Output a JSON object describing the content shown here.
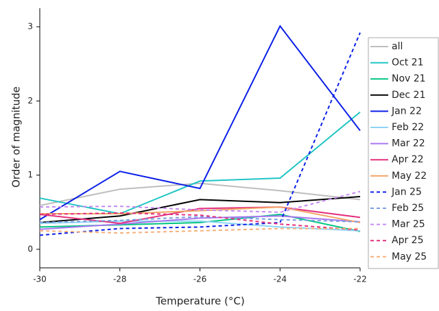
{
  "chart_data": {
    "type": "line",
    "x_label": "Temperature (°C)",
    "y_label": "Order of magnitude",
    "x": [
      -30,
      -28,
      -26,
      -24,
      -22
    ],
    "xlim": [
      -30,
      -22
    ],
    "xticks": [
      -30,
      -28,
      -26,
      -24,
      -22
    ],
    "ylim": [
      -0.25,
      3.25
    ],
    "yticks": [
      0,
      1,
      2,
      3
    ],
    "grid": false,
    "legend": "right",
    "series": [
      {
        "name": "all",
        "color": "#bdbdbd",
        "dash": false,
        "values": [
          0.59,
          0.81,
          0.89,
          0.79,
          0.67
        ]
      },
      {
        "name": "Oct 21",
        "color": "#1fc4c4",
        "dash": false,
        "values": [
          0.69,
          0.48,
          0.92,
          0.96,
          1.85
        ]
      },
      {
        "name": "Nov 21",
        "color": "#00c483",
        "dash": false,
        "values": [
          0.3,
          0.33,
          0.36,
          0.47,
          0.24
        ]
      },
      {
        "name": "Dec 21",
        "color": "#000000",
        "dash": false,
        "values": [
          0.36,
          0.45,
          0.67,
          0.63,
          0.71
        ]
      },
      {
        "name": "Jan 22",
        "color": "#0a1ee6",
        "dash": false,
        "values": [
          0.4,
          1.05,
          0.82,
          3.01,
          1.6
        ]
      },
      {
        "name": "Feb 22",
        "color": "#8fd4f5",
        "dash": false,
        "values": [
          0.35,
          0.38,
          0.38,
          0.3,
          0.25
        ]
      },
      {
        "name": "Mar 22",
        "color": "#a877f0",
        "dash": false,
        "values": [
          0.27,
          0.34,
          0.42,
          0.45,
          0.37
        ]
      },
      {
        "name": "Apr 22",
        "color": "#e3307d",
        "dash": false,
        "values": [
          0.47,
          0.35,
          0.55,
          0.57,
          0.43
        ]
      },
      {
        "name": "May 22",
        "color": "#f2a465",
        "dash": false,
        "values": [
          0.48,
          0.48,
          0.52,
          0.57,
          0.36
        ]
      },
      {
        "name": "Jan 25",
        "color": "#0a1ee6",
        "dash": true,
        "values": [
          0.19,
          0.28,
          0.3,
          0.36,
          2.92
        ]
      },
      {
        "name": "Feb 25",
        "color": "#7a9ee0",
        "dash": true,
        "values": [
          0.36,
          0.39,
          0.44,
          0.4,
          0.37
        ]
      },
      {
        "name": "Mar 25",
        "color": "#c58af0",
        "dash": true,
        "values": [
          0.57,
          0.58,
          0.53,
          0.5,
          0.78
        ]
      },
      {
        "name": "Apr 25",
        "color": "#e3307d",
        "dash": true,
        "values": [
          0.47,
          0.49,
          0.46,
          0.34,
          0.26
        ]
      },
      {
        "name": "May 25",
        "color": "#f5b07a",
        "dash": true,
        "values": [
          0.25,
          0.22,
          0.25,
          0.28,
          0.28
        ]
      }
    ]
  }
}
